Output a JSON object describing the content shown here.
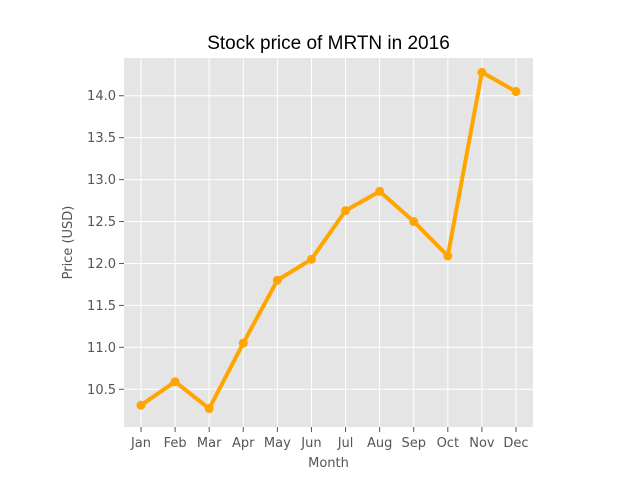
{
  "chart_data": {
    "type": "line",
    "title": "Stock price of MRTN in 2016",
    "xlabel": "Month",
    "ylabel": "Price (USD)",
    "categories": [
      "Jan",
      "Feb",
      "Mar",
      "Apr",
      "May",
      "Jun",
      "Jul",
      "Aug",
      "Sep",
      "Oct",
      "Nov",
      "Dec"
    ],
    "series": [
      {
        "values": [
          10.31,
          10.59,
          10.27,
          11.05,
          11.8,
          12.05,
          12.63,
          12.86,
          12.5,
          12.09,
          14.28,
          14.05
        ],
        "color": "#FFA500"
      }
    ],
    "ylim": [
      10.05,
      14.45
    ],
    "yticks": [
      10.5,
      11.0,
      11.5,
      12.0,
      12.5,
      13.0,
      13.5,
      14.0
    ],
    "grid": true,
    "background_color": "#E5E5E5",
    "grid_color": "#FFFFFF",
    "legend": "none"
  }
}
